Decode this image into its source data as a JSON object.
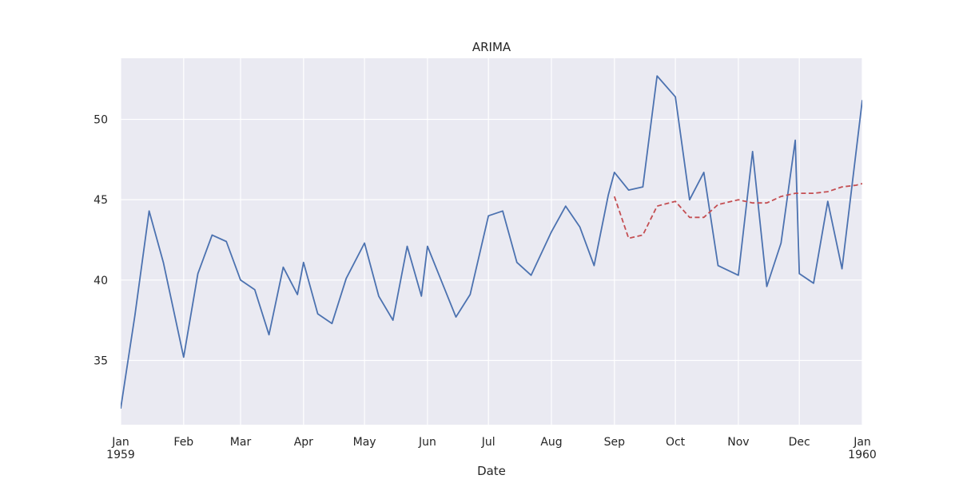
{
  "chart_data": {
    "type": "line",
    "title": "ARIMA",
    "xlabel": "Date",
    "ylabel": "",
    "x_range": [
      "1959-01-01",
      "1960-01-01"
    ],
    "ylim": [
      31,
      53.8
    ],
    "grid": true,
    "legend": "none",
    "x_tick_labels": [
      {
        "date": "1959-01-01",
        "label": "Jan",
        "sublabel": "1959"
      },
      {
        "date": "1959-02-01",
        "label": "Feb",
        "sublabel": ""
      },
      {
        "date": "1959-03-01",
        "label": "Mar",
        "sublabel": ""
      },
      {
        "date": "1959-04-01",
        "label": "Apr",
        "sublabel": ""
      },
      {
        "date": "1959-05-01",
        "label": "May",
        "sublabel": ""
      },
      {
        "date": "1959-06-01",
        "label": "Jun",
        "sublabel": ""
      },
      {
        "date": "1959-07-01",
        "label": "Jul",
        "sublabel": ""
      },
      {
        "date": "1959-08-01",
        "label": "Aug",
        "sublabel": ""
      },
      {
        "date": "1959-09-01",
        "label": "Sep",
        "sublabel": ""
      },
      {
        "date": "1959-10-01",
        "label": "Oct",
        "sublabel": ""
      },
      {
        "date": "1959-11-01",
        "label": "Nov",
        "sublabel": ""
      },
      {
        "date": "1959-12-01",
        "label": "Dec",
        "sublabel": ""
      },
      {
        "date": "1960-01-01",
        "label": "Jan",
        "sublabel": "1960"
      }
    ],
    "y_ticks": [
      35,
      40,
      45,
      50
    ],
    "series": [
      {
        "color": "#4c72b0",
        "style": "solid",
        "points": [
          [
            "1959-01-01",
            32.0
          ],
          [
            "1959-01-08",
            37.8
          ],
          [
            "1959-01-15",
            44.3
          ],
          [
            "1959-01-22",
            41.1
          ],
          [
            "1959-02-01",
            35.2
          ],
          [
            "1959-02-08",
            40.4
          ],
          [
            "1959-02-15",
            42.8
          ],
          [
            "1959-02-22",
            42.4
          ],
          [
            "1959-03-01",
            40.0
          ],
          [
            "1959-03-08",
            39.4
          ],
          [
            "1959-03-15",
            36.6
          ],
          [
            "1959-03-22",
            40.8
          ],
          [
            "1959-03-29",
            39.1
          ],
          [
            "1959-04-01",
            41.1
          ],
          [
            "1959-04-08",
            37.9
          ],
          [
            "1959-04-15",
            37.3
          ],
          [
            "1959-04-22",
            40.1
          ],
          [
            "1959-05-01",
            42.3
          ],
          [
            "1959-05-08",
            39.0
          ],
          [
            "1959-05-15",
            37.5
          ],
          [
            "1959-05-22",
            42.1
          ],
          [
            "1959-05-29",
            39.0
          ],
          [
            "1959-06-01",
            42.1
          ],
          [
            "1959-06-08",
            39.9
          ],
          [
            "1959-06-15",
            37.7
          ],
          [
            "1959-06-22",
            39.1
          ],
          [
            "1959-07-01",
            44.0
          ],
          [
            "1959-07-08",
            44.3
          ],
          [
            "1959-07-15",
            41.1
          ],
          [
            "1959-07-22",
            40.3
          ],
          [
            "1959-08-01",
            43.0
          ],
          [
            "1959-08-08",
            44.6
          ],
          [
            "1959-08-15",
            43.3
          ],
          [
            "1959-08-22",
            40.9
          ],
          [
            "1959-08-29",
            45.3
          ],
          [
            "1959-09-01",
            46.7
          ],
          [
            "1959-09-08",
            45.6
          ],
          [
            "1959-09-15",
            45.8
          ],
          [
            "1959-09-22",
            52.7
          ],
          [
            "1959-10-01",
            51.4
          ],
          [
            "1959-10-08",
            45.0
          ],
          [
            "1959-10-15",
            46.7
          ],
          [
            "1959-10-22",
            40.9
          ],
          [
            "1959-11-01",
            40.3
          ],
          [
            "1959-11-08",
            48.0
          ],
          [
            "1959-11-15",
            39.6
          ],
          [
            "1959-11-22",
            42.3
          ],
          [
            "1959-11-29",
            48.7
          ],
          [
            "1959-12-01",
            40.4
          ],
          [
            "1959-12-08",
            39.8
          ],
          [
            "1959-12-15",
            44.9
          ],
          [
            "1959-12-22",
            40.7
          ],
          [
            "1960-01-01",
            51.2
          ]
        ]
      },
      {
        "color": "#c44e52",
        "style": "dashed",
        "points": [
          [
            "1959-09-01",
            45.2
          ],
          [
            "1959-09-08",
            42.6
          ],
          [
            "1959-09-15",
            42.8
          ],
          [
            "1959-09-22",
            44.6
          ],
          [
            "1959-10-01",
            44.9
          ],
          [
            "1959-10-08",
            43.9
          ],
          [
            "1959-10-15",
            43.9
          ],
          [
            "1959-10-22",
            44.7
          ],
          [
            "1959-11-01",
            45.0
          ],
          [
            "1959-11-08",
            44.8
          ],
          [
            "1959-11-15",
            44.8
          ],
          [
            "1959-11-22",
            45.2
          ],
          [
            "1959-11-29",
            45.4
          ],
          [
            "1959-12-01",
            45.4
          ],
          [
            "1959-12-08",
            45.4
          ],
          [
            "1959-12-15",
            45.5
          ],
          [
            "1959-12-22",
            45.8
          ],
          [
            "1959-12-29",
            45.9
          ],
          [
            "1960-01-01",
            46.0
          ]
        ]
      }
    ]
  }
}
